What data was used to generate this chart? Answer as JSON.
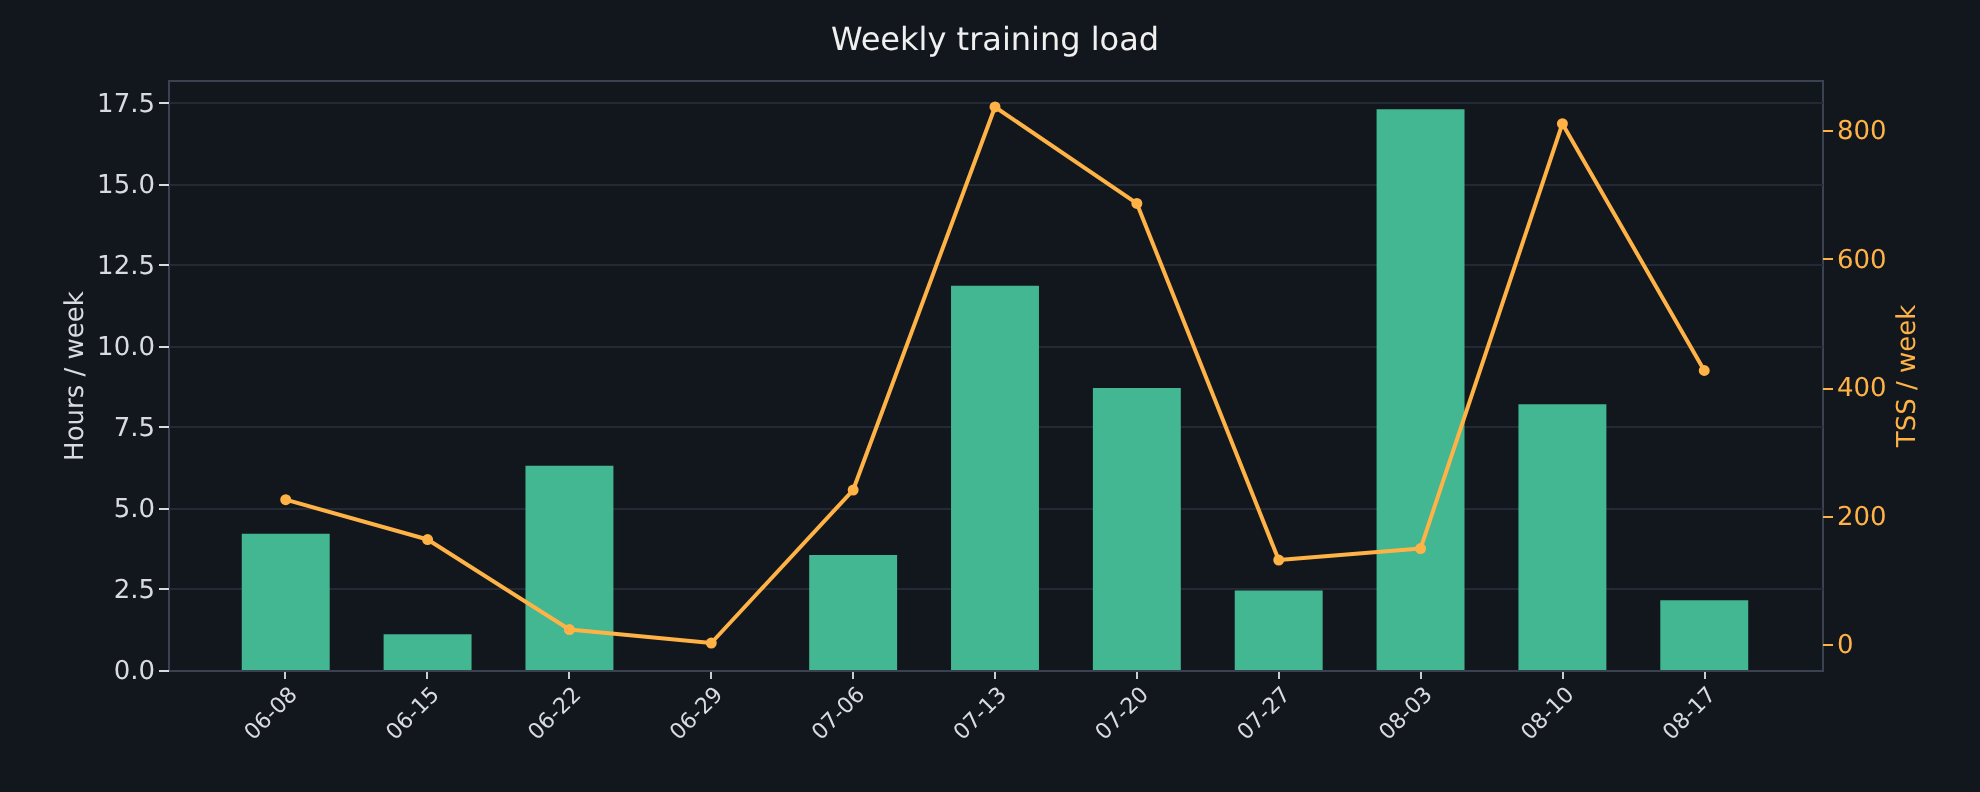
{
  "chart_data": {
    "type": "bar",
    "title": "Weekly training load",
    "ylabel": "Hours / week",
    "y2label": "TSS / week",
    "categories": [
      "06-08",
      "06-15",
      "06-22",
      "06-29",
      "07-06",
      "07-13",
      "07-20",
      "07-27",
      "08-03",
      "08-10",
      "08-17"
    ],
    "series": [
      {
        "color": "#43b692",
        "values": [
          4.2,
          1.1,
          6.3,
          0,
          3.55,
          11.85,
          8.7,
          2.45,
          17.3,
          8.2,
          2.15
        ]
      },
      {
        "type": "line",
        "axis": "y2",
        "color": "#ffb347",
        "values": [
          225,
          163,
          23,
          2,
          240,
          836,
          686,
          131,
          149,
          810,
          426
        ]
      }
    ],
    "ylim": [
      0,
      18.2
    ],
    "yticks": [
      {
        "value": 0,
        "label": "0.0"
      },
      2.5,
      {
        "value": 5,
        "label": "5.0"
      },
      7.5,
      {
        "value": 10,
        "label": "10.0"
      },
      12.5,
      {
        "value": 15,
        "label": "15.0"
      },
      17.5
    ],
    "y2lim": [
      -40,
      878
    ],
    "y2ticks": [
      0,
      200,
      400,
      600,
      800
    ],
    "grid": "y",
    "marker": "circle",
    "line_style": "solid"
  }
}
